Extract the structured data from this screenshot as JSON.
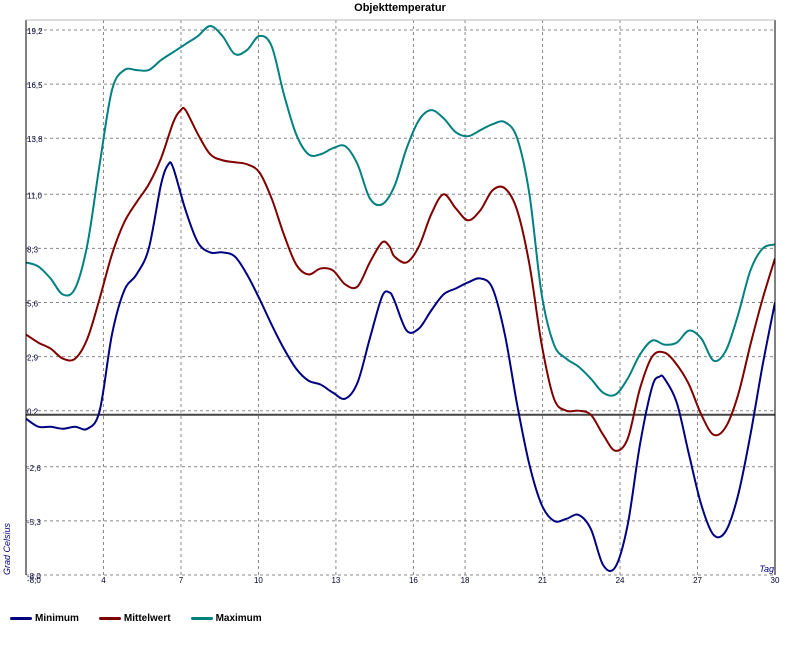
{
  "chart_data": {
    "type": "line",
    "title": "Objekttemperatur",
    "xlabel": "Tag",
    "ylabel": "Grad Celsius",
    "xlim": [
      1,
      30
    ],
    "ylim": [
      -8.0,
      19.2
    ],
    "x_ticks": [
      4,
      7,
      10,
      13,
      16,
      18,
      21,
      24,
      27,
      30
    ],
    "x_tick_labels": [
      "4",
      "7",
      "10",
      "13",
      "16",
      "18",
      "21",
      "24",
      "27",
      "30"
    ],
    "y_ticks": [
      -8.0,
      -5.3,
      -2.6,
      0.2,
      2.9,
      5.6,
      8.3,
      11.0,
      13.8,
      16.5,
      19.2
    ],
    "y_tick_labels": [
      "-8,0",
      "-5,3",
      "-2,6",
      "0,2",
      "2,9",
      "5,6",
      "8,3",
      "11,0",
      "13,8",
      "16,5",
      "19,2"
    ],
    "zero_line": 0.0,
    "grid": true,
    "legend_position": "bottom-left",
    "series": [
      {
        "name": "Minimum",
        "color": "#000080",
        "points": [
          [
            1,
            -0.2
          ],
          [
            1.5,
            -0.6
          ],
          [
            2,
            -0.6
          ],
          [
            2.5,
            -0.7
          ],
          [
            3,
            -0.6
          ],
          [
            3.5,
            -0.7
          ],
          [
            4,
            0.2
          ],
          [
            4.5,
            4.0
          ],
          [
            5,
            6.2
          ],
          [
            5.5,
            7.0
          ],
          [
            6,
            8.3
          ],
          [
            6.5,
            11.5
          ],
          [
            6.8,
            12.5
          ],
          [
            7,
            12.3
          ],
          [
            7.5,
            10.2
          ],
          [
            8,
            8.6
          ],
          [
            8.5,
            8.1
          ],
          [
            9,
            8.1
          ],
          [
            9.5,
            7.9
          ],
          [
            10,
            7.0
          ],
          [
            10.5,
            5.8
          ],
          [
            11,
            4.5
          ],
          [
            11.5,
            3.3
          ],
          [
            12,
            2.3
          ],
          [
            12.5,
            1.7
          ],
          [
            13,
            1.5
          ],
          [
            13.5,
            1.1
          ],
          [
            14,
            0.8
          ],
          [
            14.5,
            1.6
          ],
          [
            15,
            3.8
          ],
          [
            15.5,
            5.9
          ],
          [
            15.8,
            6.1
          ],
          [
            16,
            5.7
          ],
          [
            16.5,
            4.2
          ],
          [
            17,
            4.3
          ],
          [
            17.5,
            5.2
          ],
          [
            18,
            6.0
          ],
          [
            18.5,
            6.3
          ],
          [
            19,
            6.6
          ],
          [
            19.5,
            6.8
          ],
          [
            20,
            6.3
          ],
          [
            20.5,
            4.0
          ],
          [
            21,
            0.5
          ],
          [
            21.5,
            -2.5
          ],
          [
            22,
            -4.5
          ],
          [
            22.5,
            -5.3
          ],
          [
            23,
            -5.2
          ],
          [
            23.5,
            -5.0
          ],
          [
            24,
            -5.7
          ],
          [
            24.5,
            -7.5
          ],
          [
            25,
            -7.6
          ],
          [
            25.5,
            -5.5
          ],
          [
            26,
            -1.5
          ],
          [
            26.5,
            1.4
          ],
          [
            26.8,
            1.9
          ],
          [
            27,
            1.8
          ],
          [
            27.5,
            0.6
          ],
          [
            28,
            -2.0
          ],
          [
            28.5,
            -4.5
          ],
          [
            29,
            -6.0
          ],
          [
            29.5,
            -5.8
          ],
          [
            30,
            -4.0
          ],
          [
            30.5,
            -1.0
          ],
          [
            31,
            2.5
          ],
          [
            31.5,
            5.6
          ]
        ]
      },
      {
        "name": "Mittelwert",
        "color": "#800000",
        "points": [
          [
            1,
            4.0
          ],
          [
            1.5,
            3.6
          ],
          [
            2,
            3.3
          ],
          [
            2.5,
            2.8
          ],
          [
            3,
            2.8
          ],
          [
            3.5,
            3.8
          ],
          [
            4,
            5.8
          ],
          [
            4.5,
            8.0
          ],
          [
            5,
            9.6
          ],
          [
            5.5,
            10.6
          ],
          [
            6,
            11.5
          ],
          [
            6.5,
            12.8
          ],
          [
            7,
            14.6
          ],
          [
            7.3,
            15.2
          ],
          [
            7.5,
            15.2
          ],
          [
            8,
            14.0
          ],
          [
            8.5,
            13.0
          ],
          [
            9,
            12.7
          ],
          [
            9.5,
            12.6
          ],
          [
            10,
            12.5
          ],
          [
            10.5,
            12.1
          ],
          [
            11,
            10.8
          ],
          [
            11.5,
            9.0
          ],
          [
            12,
            7.5
          ],
          [
            12.5,
            7.0
          ],
          [
            13,
            7.3
          ],
          [
            13.5,
            7.2
          ],
          [
            14,
            6.5
          ],
          [
            14.5,
            6.4
          ],
          [
            15,
            7.6
          ],
          [
            15.5,
            8.6
          ],
          [
            15.8,
            8.4
          ],
          [
            16,
            7.9
          ],
          [
            16.5,
            7.6
          ],
          [
            17,
            8.4
          ],
          [
            17.5,
            10.0
          ],
          [
            18,
            11.0
          ],
          [
            18.5,
            10.3
          ],
          [
            19,
            9.7
          ],
          [
            19.5,
            10.2
          ],
          [
            20,
            11.2
          ],
          [
            20.5,
            11.3
          ],
          [
            21,
            10.2
          ],
          [
            21.5,
            7.5
          ],
          [
            22,
            3.5
          ],
          [
            22.5,
            0.8
          ],
          [
            23,
            0.2
          ],
          [
            23.5,
            0.2
          ],
          [
            24,
            0.0
          ],
          [
            24.5,
            -1.0
          ],
          [
            25,
            -1.8
          ],
          [
            25.5,
            -1.2
          ],
          [
            26,
            1.3
          ],
          [
            26.5,
            2.9
          ],
          [
            27,
            3.1
          ],
          [
            27.5,
            2.5
          ],
          [
            28,
            1.5
          ],
          [
            28.5,
            0.0
          ],
          [
            29,
            -1.0
          ],
          [
            29.5,
            -0.6
          ],
          [
            30,
            1.0
          ],
          [
            30.5,
            3.5
          ],
          [
            31,
            5.8
          ],
          [
            31.5,
            7.8
          ]
        ]
      },
      {
        "name": "Maximum",
        "color": "#008080",
        "points": [
          [
            1,
            7.6
          ],
          [
            1.5,
            7.4
          ],
          [
            2,
            6.8
          ],
          [
            2.5,
            6.0
          ],
          [
            3,
            6.3
          ],
          [
            3.5,
            8.5
          ],
          [
            4,
            12.5
          ],
          [
            4.5,
            16.2
          ],
          [
            5,
            17.2
          ],
          [
            5.5,
            17.2
          ],
          [
            6,
            17.2
          ],
          [
            6.5,
            17.7
          ],
          [
            7,
            18.1
          ],
          [
            7.5,
            18.5
          ],
          [
            8,
            18.9
          ],
          [
            8.5,
            19.4
          ],
          [
            9,
            18.9
          ],
          [
            9.5,
            18.0
          ],
          [
            10,
            18.2
          ],
          [
            10.5,
            18.9
          ],
          [
            11,
            18.4
          ],
          [
            11.5,
            16.0
          ],
          [
            12,
            14.0
          ],
          [
            12.5,
            13.0
          ],
          [
            13,
            13.0
          ],
          [
            13.5,
            13.3
          ],
          [
            14,
            13.4
          ],
          [
            14.5,
            12.5
          ],
          [
            15,
            10.8
          ],
          [
            15.5,
            10.5
          ],
          [
            16,
            11.4
          ],
          [
            16.5,
            13.3
          ],
          [
            17,
            14.7
          ],
          [
            17.5,
            15.2
          ],
          [
            18,
            14.8
          ],
          [
            18.5,
            14.1
          ],
          [
            19,
            13.9
          ],
          [
            19.5,
            14.2
          ],
          [
            20,
            14.5
          ],
          [
            20.5,
            14.6
          ],
          [
            21,
            13.8
          ],
          [
            21.5,
            11.0
          ],
          [
            22,
            6.0
          ],
          [
            22.5,
            3.5
          ],
          [
            23,
            2.8
          ],
          [
            23.5,
            2.4
          ],
          [
            24,
            1.8
          ],
          [
            24.5,
            1.1
          ],
          [
            25,
            1.0
          ],
          [
            25.5,
            1.8
          ],
          [
            26,
            3.0
          ],
          [
            26.5,
            3.7
          ],
          [
            27,
            3.5
          ],
          [
            27.5,
            3.6
          ],
          [
            28,
            4.2
          ],
          [
            28.5,
            3.8
          ],
          [
            29,
            2.7
          ],
          [
            29.5,
            3.2
          ],
          [
            30,
            5.0
          ],
          [
            30.5,
            7.2
          ],
          [
            31,
            8.3
          ],
          [
            31.5,
            8.5
          ]
        ]
      }
    ]
  }
}
